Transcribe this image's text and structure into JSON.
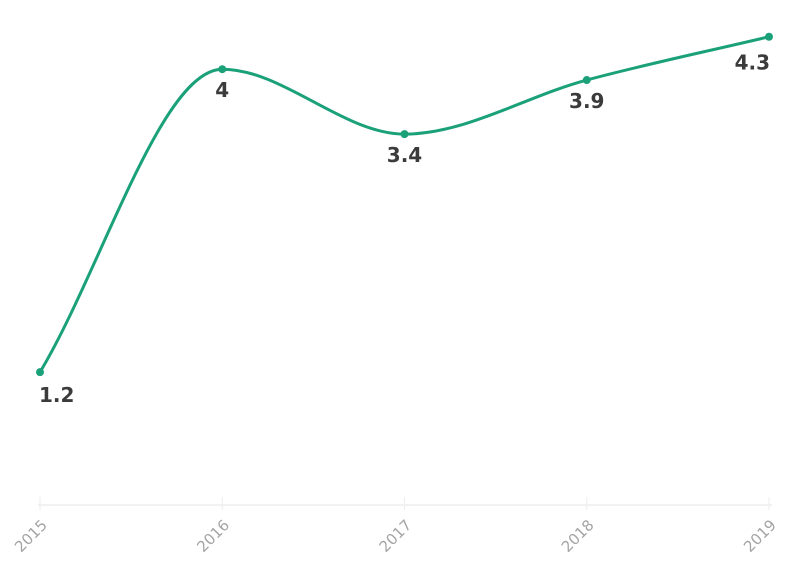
{
  "chart_data": {
    "type": "line",
    "title": "",
    "xlabel": "",
    "ylabel": "",
    "categories": [
      "2015",
      "2016",
      "2017",
      "2018",
      "2019"
    ],
    "values": [
      1.2,
      4,
      3.4,
      3.9,
      4.3
    ],
    "point_labels": [
      "1.2",
      "4",
      "3.4",
      "3.9",
      "4.3"
    ],
    "ylim": [
      0,
      4.6
    ],
    "grid": false,
    "legend": "none",
    "curve": "monotone",
    "x_tick_rotation_deg": -45,
    "line_color": "#1ba179",
    "marker_color": "#1ba179",
    "point_label_color": "#3b3b3b",
    "tick_label_color": "#a4a4a4",
    "axis_color": "#e4e4e4"
  }
}
